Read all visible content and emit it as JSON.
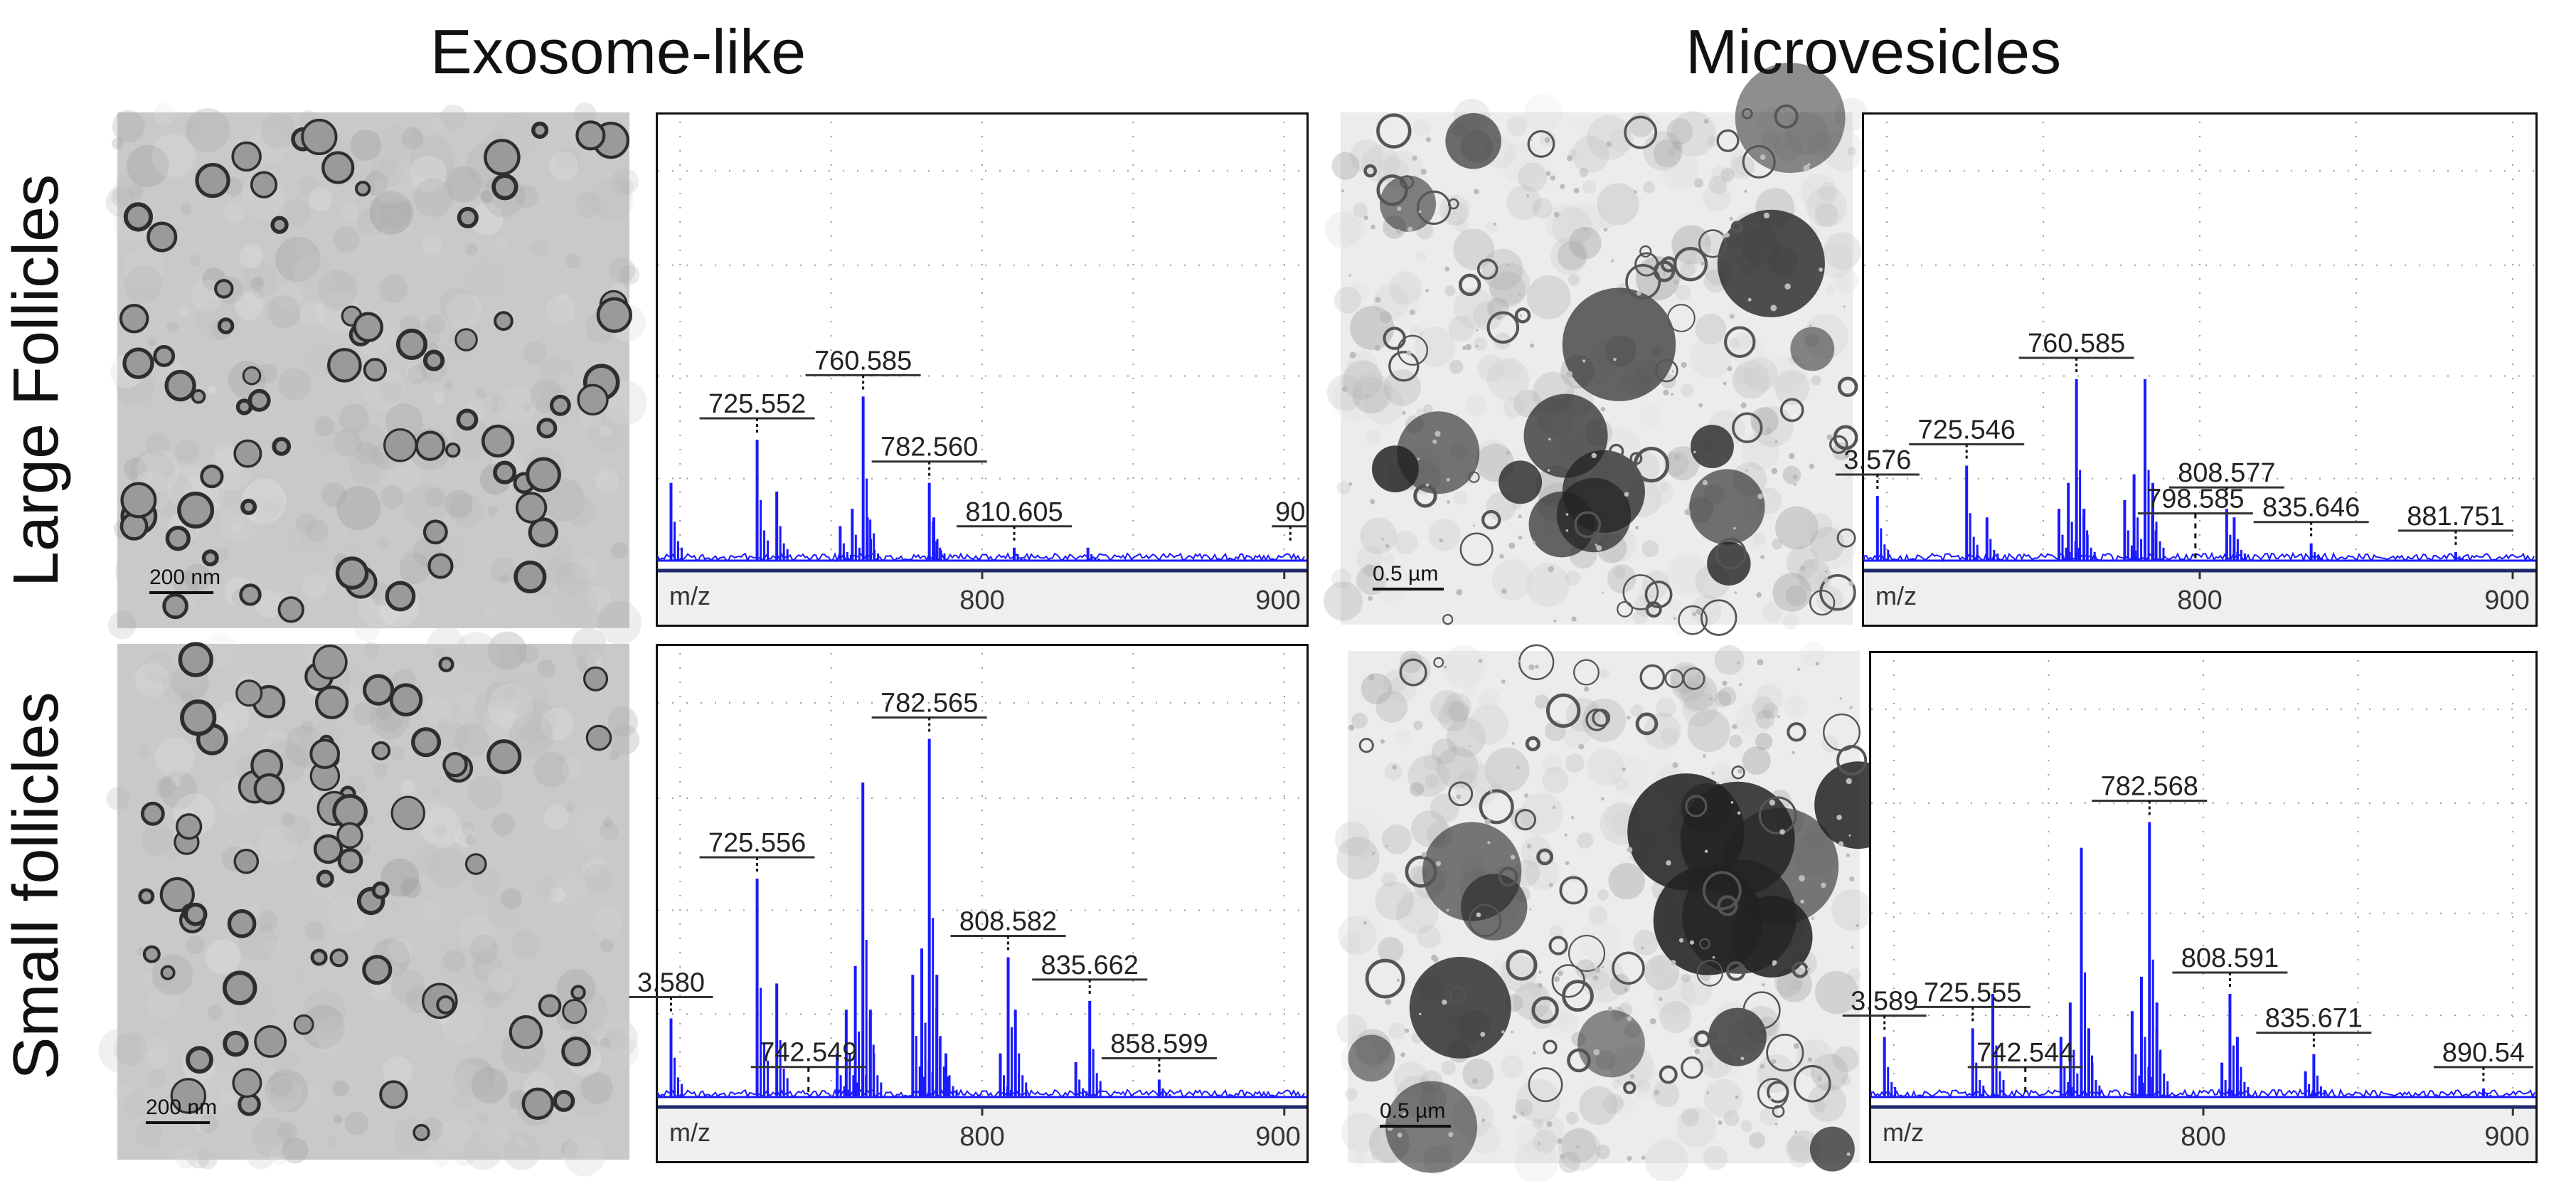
{
  "columns": {
    "exosome": "Exosome-like",
    "microvesicles": "Microvesicles"
  },
  "rows": {
    "large": "Large Follicles",
    "small": "Small follicles"
  },
  "scalebars": {
    "exosome": "200 nm",
    "micro": "0.5 µm"
  },
  "axis": {
    "xlabel": "m/z",
    "ticks": [
      "800",
      "900"
    ],
    "tick_values": [
      800,
      900
    ],
    "xlim": [
      695,
      905
    ]
  },
  "colors": {
    "spectrum": "#1a1aff",
    "label": "#222222",
    "tem_light_exo": "#c9c9c9",
    "tem_light_micro": "#ececec"
  },
  "panels": [
    {
      "id": "exo-large",
      "peaks": [
        {
          "x": 697,
          "h": 0.18
        },
        {
          "x": 725.5,
          "h": 0.28
        },
        {
          "x": 732,
          "h": 0.16
        },
        {
          "x": 753,
          "h": 0.08
        },
        {
          "x": 757,
          "h": 0.12
        },
        {
          "x": 760.6,
          "h": 0.38
        },
        {
          "x": 762,
          "h": 0.1
        },
        {
          "x": 782.5,
          "h": 0.18
        },
        {
          "x": 784,
          "h": 0.1
        },
        {
          "x": 810.6,
          "h": 0.03
        },
        {
          "x": 835,
          "h": 0.03
        }
      ],
      "labels": [
        {
          "text": "725.552",
          "x": 725.5,
          "h": 0.28,
          "dashed": false
        },
        {
          "text": "760.585",
          "x": 760.6,
          "h": 0.38,
          "dashed": false
        },
        {
          "text": "782.560",
          "x": 782.5,
          "h": 0.18,
          "dashed": false
        },
        {
          "text": "810.605",
          "x": 810.6,
          "h": 0.03,
          "dashed": false
        },
        {
          "text": "90",
          "x": 902,
          "h": 0.03,
          "dashed": false
        }
      ]
    },
    {
      "id": "micro-large",
      "peaks": [
        {
          "x": 697,
          "h": 0.15
        },
        {
          "x": 725.5,
          "h": 0.22
        },
        {
          "x": 732,
          "h": 0.1
        },
        {
          "x": 755,
          "h": 0.12
        },
        {
          "x": 758,
          "h": 0.18
        },
        {
          "x": 760.6,
          "h": 0.42
        },
        {
          "x": 763,
          "h": 0.12
        },
        {
          "x": 776,
          "h": 0.14
        },
        {
          "x": 779,
          "h": 0.2
        },
        {
          "x": 782.5,
          "h": 0.42
        },
        {
          "x": 785,
          "h": 0.18
        },
        {
          "x": 808.6,
          "h": 0.12
        },
        {
          "x": 811,
          "h": 0.1
        },
        {
          "x": 835.6,
          "h": 0.04
        },
        {
          "x": 881.8,
          "h": 0.02
        }
      ],
      "labels": [
        {
          "text": "3.576",
          "x": 697,
          "h": 0.15,
          "dashed": false
        },
        {
          "text": "725.546",
          "x": 725.5,
          "h": 0.22,
          "dashed": false
        },
        {
          "text": "760.585",
          "x": 760.6,
          "h": 0.42,
          "dashed": false
        },
        {
          "text": "798.585",
          "x": 798.6,
          "h": 0.06,
          "dashed": true
        },
        {
          "text": "808.577",
          "x": 808.6,
          "h": 0.12,
          "dashed": false
        },
        {
          "text": "835.646",
          "x": 835.6,
          "h": 0.04,
          "dashed": false
        },
        {
          "text": "881.751",
          "x": 881.8,
          "h": 0.02,
          "dashed": false
        }
      ]
    },
    {
      "id": "exo-small",
      "peaks": [
        {
          "x": 697,
          "h": 0.18
        },
        {
          "x": 725.5,
          "h": 0.5
        },
        {
          "x": 732,
          "h": 0.26
        },
        {
          "x": 752,
          "h": 0.1
        },
        {
          "x": 755,
          "h": 0.2
        },
        {
          "x": 758,
          "h": 0.3
        },
        {
          "x": 760.5,
          "h": 0.72
        },
        {
          "x": 763,
          "h": 0.2
        },
        {
          "x": 777,
          "h": 0.28
        },
        {
          "x": 780,
          "h": 0.34
        },
        {
          "x": 782.5,
          "h": 0.82
        },
        {
          "x": 785,
          "h": 0.28
        },
        {
          "x": 788,
          "h": 0.1
        },
        {
          "x": 806,
          "h": 0.1
        },
        {
          "x": 808.6,
          "h": 0.32
        },
        {
          "x": 811,
          "h": 0.2
        },
        {
          "x": 831,
          "h": 0.08
        },
        {
          "x": 835.6,
          "h": 0.22
        },
        {
          "x": 858.6,
          "h": 0.04
        }
      ],
      "labels": [
        {
          "text": "3.580",
          "x": 697,
          "h": 0.18,
          "dashed": false
        },
        {
          "text": "725.556",
          "x": 725.5,
          "h": 0.5,
          "dashed": false
        },
        {
          "text": "742.549",
          "x": 742.5,
          "h": 0.02,
          "dashed": true
        },
        {
          "text": "782.565",
          "x": 782.5,
          "h": 0.82,
          "dashed": false
        },
        {
          "text": "808.582",
          "x": 808.6,
          "h": 0.32,
          "dashed": false
        },
        {
          "text": "835.662",
          "x": 835.6,
          "h": 0.22,
          "dashed": false
        },
        {
          "text": "858.599",
          "x": 858.6,
          "h": 0.04,
          "dashed": false
        }
      ]
    },
    {
      "id": "micro-small",
      "peaks": [
        {
          "x": 697,
          "h": 0.14
        },
        {
          "x": 725.5,
          "h": 0.16
        },
        {
          "x": 732,
          "h": 0.24
        },
        {
          "x": 754,
          "h": 0.14
        },
        {
          "x": 757,
          "h": 0.22
        },
        {
          "x": 760.6,
          "h": 0.58
        },
        {
          "x": 763,
          "h": 0.16
        },
        {
          "x": 777,
          "h": 0.2
        },
        {
          "x": 780,
          "h": 0.28
        },
        {
          "x": 782.6,
          "h": 0.64
        },
        {
          "x": 785,
          "h": 0.22
        },
        {
          "x": 806,
          "h": 0.08
        },
        {
          "x": 808.6,
          "h": 0.24
        },
        {
          "x": 811,
          "h": 0.14
        },
        {
          "x": 833,
          "h": 0.06
        },
        {
          "x": 835.7,
          "h": 0.1
        },
        {
          "x": 890.5,
          "h": 0.02
        }
      ],
      "labels": [
        {
          "text": "3.589",
          "x": 697,
          "h": 0.14,
          "dashed": false
        },
        {
          "text": "725.555",
          "x": 725.5,
          "h": 0.16,
          "dashed": false
        },
        {
          "text": "742.544",
          "x": 742.5,
          "h": 0.02,
          "dashed": true
        },
        {
          "text": "782.568",
          "x": 782.6,
          "h": 0.64,
          "dashed": false
        },
        {
          "text": "808.591",
          "x": 808.6,
          "h": 0.24,
          "dashed": false
        },
        {
          "text": "835.671",
          "x": 835.7,
          "h": 0.1,
          "dashed": false
        },
        {
          "text": "890.54",
          "x": 890.5,
          "h": 0.02,
          "dashed": false
        }
      ]
    }
  ]
}
